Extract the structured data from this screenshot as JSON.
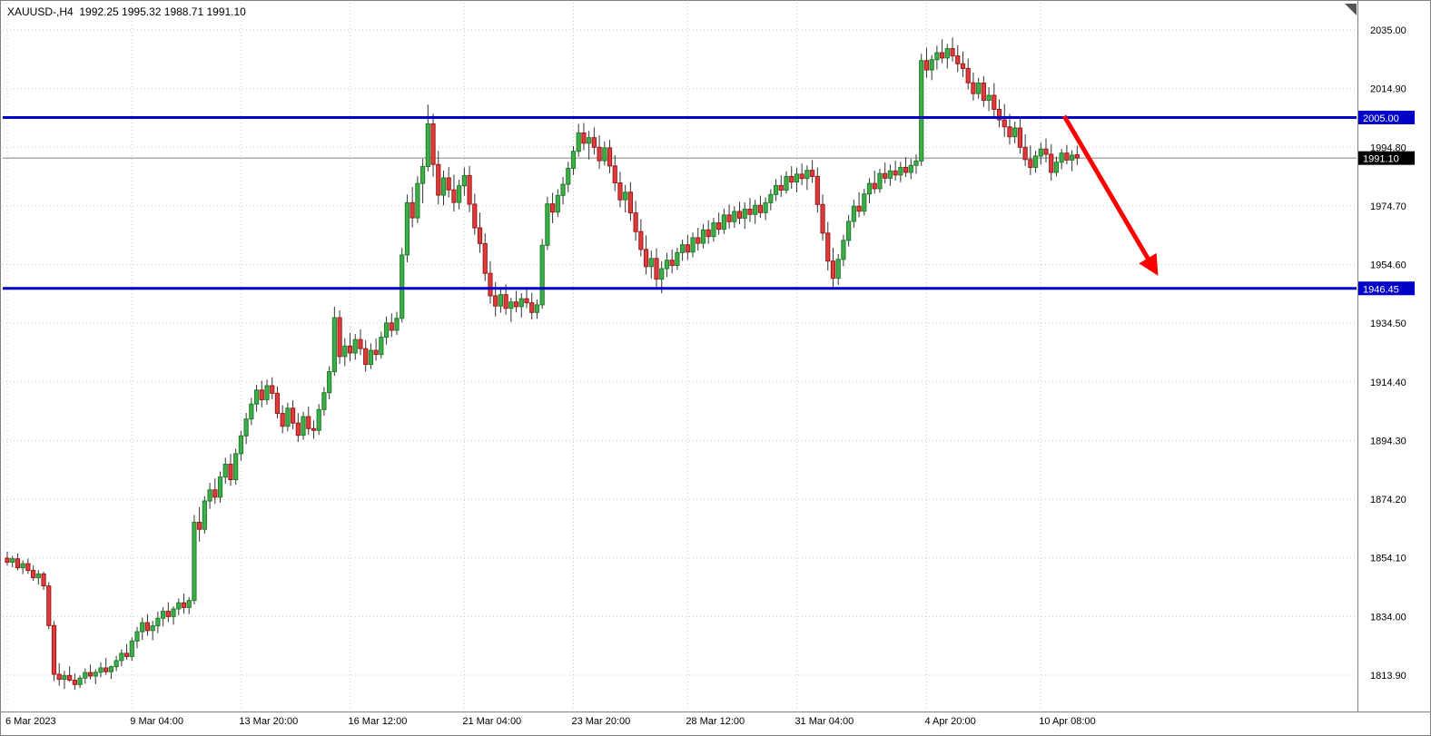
{
  "window": {
    "title": "XAUUSD-,H4  1992.25 1995.32 1988.71 1991.10"
  },
  "colors": {
    "background": "#ffffff",
    "grid": "#c8c8c8",
    "border": "#808080",
    "axis_text": "#000000",
    "bull_body": "#3fae49",
    "bull_border": "#1e7e2a",
    "bear_body": "#e03c3c",
    "bear_border": "#9e1818",
    "wick": "#333333",
    "level_line": "#0000c8",
    "level_label_bg": "#0000c8",
    "price_line": "#808080",
    "price_label_bg": "#000000",
    "label_text": "#ffffff",
    "arrow": "#ff0000",
    "shift_marker": "#555555"
  },
  "chart_data": {
    "type": "candlestick",
    "symbol": "XAUUSD-",
    "timeframe": "H4",
    "ohlc_header": {
      "open": "1992.25",
      "high": "1995.32",
      "low": "1988.71",
      "close": "1991.10"
    },
    "y_axis": {
      "labels": [
        "2035.00",
        "2014.90",
        "1994.80",
        "1974.70",
        "1954.60",
        "1934.50",
        "1914.40",
        "1894.30",
        "1874.20",
        "1854.10",
        "1834.00",
        "1813.90"
      ],
      "max": 2035.0,
      "min": 1813.9,
      "step": 20.1,
      "grid": true
    },
    "x_axis": {
      "labels": [
        {
          "text": "6 Mar 2023",
          "index": 0
        },
        {
          "text": "9 Mar 04:00",
          "index": 24
        },
        {
          "text": "13 Mar 20:00",
          "index": 45
        },
        {
          "text": "16 Mar 12:00",
          "index": 66
        },
        {
          "text": "21 Mar 04:00",
          "index": 88
        },
        {
          "text": "23 Mar 20:00",
          "index": 109
        },
        {
          "text": "28 Mar 12:00",
          "index": 131
        },
        {
          "text": "31 Mar 04:00",
          "index": 152
        },
        {
          "text": "4 Apr 20:00",
          "index": 177
        },
        {
          "text": "10 Apr 08:00",
          "index": 199
        }
      ],
      "grid": true
    },
    "price_lines": [
      {
        "name": "resistance",
        "price": 2005.0,
        "label": "2005.00"
      },
      {
        "name": "support",
        "price": 1946.45,
        "label": "1946.45"
      }
    ],
    "current_price": {
      "value": 1991.1,
      "label": "1991.10"
    },
    "annotations": [
      {
        "type": "trend-arrow",
        "from": {
          "index": 203.5,
          "price": 2005.5
        },
        "to": {
          "index": 221.0,
          "price": 1952.5
        }
      }
    ],
    "candles": [
      [
        1854.0,
        1856.2,
        1851.5,
        1852.6
      ],
      [
        1852.6,
        1854.8,
        1850.9,
        1853.8
      ],
      [
        1853.8,
        1855.6,
        1849.8,
        1850.7
      ],
      [
        1850.7,
        1853.2,
        1848.5,
        1852.1
      ],
      [
        1852.1,
        1853.9,
        1848.6,
        1849.8
      ],
      [
        1849.8,
        1851.5,
        1846.2,
        1847.3
      ],
      [
        1847.3,
        1849.9,
        1845.0,
        1848.6
      ],
      [
        1848.6,
        1849.4,
        1843.1,
        1844.5
      ],
      [
        1844.5,
        1845.8,
        1829.6,
        1830.9
      ],
      [
        1830.9,
        1832.4,
        1811.9,
        1814.2
      ],
      [
        1814.2,
        1818.0,
        1810.3,
        1812.5
      ],
      [
        1812.5,
        1815.4,
        1809.2,
        1813.8
      ],
      [
        1813.8,
        1816.9,
        1811.6,
        1812.2
      ],
      [
        1812.2,
        1814.5,
        1808.9,
        1810.7
      ],
      [
        1810.7,
        1813.8,
        1809.5,
        1812.9
      ],
      [
        1812.9,
        1816.2,
        1811.0,
        1814.8
      ],
      [
        1814.8,
        1817.5,
        1812.4,
        1813.6
      ],
      [
        1813.6,
        1815.9,
        1810.8,
        1814.9
      ],
      [
        1814.9,
        1818.3,
        1813.2,
        1816.4
      ],
      [
        1816.4,
        1819.8,
        1814.0,
        1815.1
      ],
      [
        1815.1,
        1817.2,
        1812.6,
        1816.8
      ],
      [
        1816.8,
        1820.5,
        1815.3,
        1818.9
      ],
      [
        1818.9,
        1822.8,
        1817.0,
        1821.4
      ],
      [
        1821.4,
        1824.6,
        1819.2,
        1820.3
      ],
      [
        1820.3,
        1826.9,
        1818.8,
        1825.6
      ],
      [
        1825.6,
        1830.4,
        1823.1,
        1828.8
      ],
      [
        1828.8,
        1833.6,
        1826.0,
        1831.9
      ],
      [
        1831.9,
        1834.8,
        1827.4,
        1829.2
      ],
      [
        1829.2,
        1832.5,
        1825.9,
        1830.8
      ],
      [
        1830.8,
        1835.7,
        1828.3,
        1833.4
      ],
      [
        1833.4,
        1837.2,
        1830.6,
        1835.8
      ],
      [
        1835.8,
        1838.9,
        1832.1,
        1834.0
      ],
      [
        1834.0,
        1837.5,
        1831.2,
        1836.6
      ],
      [
        1836.6,
        1840.2,
        1834.4,
        1838.7
      ],
      [
        1838.7,
        1841.9,
        1835.0,
        1837.1
      ],
      [
        1837.1,
        1840.6,
        1834.8,
        1839.5
      ],
      [
        1839.5,
        1868.8,
        1838.2,
        1866.3
      ],
      [
        1866.3,
        1871.5,
        1859.7,
        1863.9
      ],
      [
        1863.9,
        1875.2,
        1862.4,
        1873.6
      ],
      [
        1873.6,
        1879.8,
        1870.9,
        1877.4
      ],
      [
        1877.4,
        1881.3,
        1872.6,
        1874.9
      ],
      [
        1874.9,
        1883.7,
        1873.0,
        1881.8
      ],
      [
        1881.8,
        1888.4,
        1879.5,
        1886.2
      ],
      [
        1886.2,
        1889.7,
        1878.8,
        1880.9
      ],
      [
        1880.9,
        1891.5,
        1879.2,
        1889.8
      ],
      [
        1889.8,
        1897.6,
        1887.4,
        1895.9
      ],
      [
        1895.9,
        1903.8,
        1893.1,
        1901.7
      ],
      [
        1901.7,
        1908.9,
        1899.6,
        1906.8
      ],
      [
        1906.8,
        1913.4,
        1904.2,
        1911.6
      ],
      [
        1911.6,
        1914.8,
        1905.7,
        1908.3
      ],
      [
        1908.3,
        1915.2,
        1906.6,
        1913.1
      ],
      [
        1913.1,
        1916.0,
        1908.4,
        1910.5
      ],
      [
        1910.5,
        1912.8,
        1901.9,
        1903.6
      ],
      [
        1903.6,
        1906.4,
        1896.8,
        1899.2
      ],
      [
        1899.2,
        1907.3,
        1897.5,
        1905.4
      ],
      [
        1905.4,
        1908.1,
        1898.2,
        1900.3
      ],
      [
        1900.3,
        1903.7,
        1893.8,
        1896.1
      ],
      [
        1896.1,
        1904.2,
        1894.6,
        1902.5
      ],
      [
        1902.5,
        1905.9,
        1896.3,
        1898.4
      ],
      [
        1898.4,
        1901.2,
        1894.9,
        1897.8
      ],
      [
        1897.8,
        1906.8,
        1896.2,
        1904.9
      ],
      [
        1904.9,
        1912.6,
        1902.8,
        1910.7
      ],
      [
        1910.7,
        1919.8,
        1908.4,
        1917.9
      ],
      [
        1917.9,
        1940.2,
        1916.5,
        1936.4
      ],
      [
        1936.4,
        1938.9,
        1920.6,
        1923.1
      ],
      [
        1923.1,
        1929.4,
        1919.8,
        1926.7
      ],
      [
        1926.7,
        1931.2,
        1921.5,
        1924.3
      ],
      [
        1924.3,
        1930.8,
        1922.0,
        1928.9
      ],
      [
        1928.9,
        1932.4,
        1923.6,
        1925.8
      ],
      [
        1925.8,
        1928.7,
        1917.9,
        1920.4
      ],
      [
        1920.4,
        1927.6,
        1918.8,
        1925.2
      ],
      [
        1925.2,
        1929.3,
        1921.7,
        1923.8
      ],
      [
        1923.8,
        1931.6,
        1922.4,
        1929.7
      ],
      [
        1929.7,
        1936.8,
        1927.2,
        1934.6
      ],
      [
        1934.6,
        1937.9,
        1929.8,
        1932.1
      ],
      [
        1932.1,
        1938.4,
        1930.5,
        1936.2
      ],
      [
        1936.2,
        1960.3,
        1934.8,
        1957.9
      ],
      [
        1957.9,
        1978.6,
        1955.4,
        1975.8
      ],
      [
        1975.8,
        1981.2,
        1967.3,
        1970.6
      ],
      [
        1970.6,
        1984.9,
        1968.8,
        1982.4
      ],
      [
        1982.4,
        1990.8,
        1975.6,
        1988.2
      ],
      [
        1988.2,
        2009.4,
        1986.5,
        2002.8
      ],
      [
        2002.8,
        2006.3,
        1984.7,
        1988.9
      ],
      [
        1988.9,
        1993.6,
        1975.2,
        1978.4
      ],
      [
        1978.4,
        1986.8,
        1974.9,
        1984.3
      ],
      [
        1984.3,
        1988.1,
        1977.6,
        1980.2
      ],
      [
        1980.2,
        1985.4,
        1972.8,
        1975.9
      ],
      [
        1975.9,
        1983.7,
        1973.5,
        1981.6
      ],
      [
        1981.6,
        1987.9,
        1978.2,
        1985.1
      ],
      [
        1985.1,
        1988.4,
        1972.6,
        1975.3
      ],
      [
        1975.3,
        1978.9,
        1964.8,
        1967.2
      ],
      [
        1967.2,
        1972.4,
        1958.6,
        1961.8
      ],
      [
        1961.8,
        1965.3,
        1948.9,
        1951.6
      ],
      [
        1951.6,
        1955.8,
        1941.2,
        1943.9
      ],
      [
        1943.9,
        1948.6,
        1936.8,
        1940.4
      ],
      [
        1940.4,
        1946.2,
        1938.1,
        1944.3
      ],
      [
        1944.3,
        1947.8,
        1937.4,
        1939.6
      ],
      [
        1939.6,
        1943.2,
        1934.9,
        1941.8
      ],
      [
        1941.8,
        1945.6,
        1938.3,
        1940.2
      ],
      [
        1940.2,
        1944.8,
        1936.5,
        1942.9
      ],
      [
        1942.9,
        1946.4,
        1939.7,
        1941.5
      ],
      [
        1941.5,
        1944.9,
        1935.8,
        1938.2
      ],
      [
        1938.2,
        1942.6,
        1936.0,
        1940.8
      ],
      [
        1940.8,
        1963.4,
        1939.5,
        1961.2
      ],
      [
        1961.2,
        1977.8,
        1959.6,
        1975.4
      ],
      [
        1975.4,
        1979.2,
        1968.8,
        1972.6
      ],
      [
        1972.6,
        1980.4,
        1970.9,
        1978.3
      ],
      [
        1978.3,
        1984.6,
        1975.2,
        1982.1
      ],
      [
        1982.1,
        1989.8,
        1979.4,
        1987.6
      ],
      [
        1987.6,
        1995.2,
        1985.3,
        1993.4
      ],
      [
        1993.4,
        2002.8,
        1991.6,
        1999.7
      ],
      [
        1999.7,
        2003.1,
        1993.8,
        1996.2
      ],
      [
        1996.2,
        2000.4,
        1990.6,
        1998.1
      ],
      [
        1998.1,
        2001.6,
        1992.3,
        1994.8
      ],
      [
        1994.8,
        1998.9,
        1987.4,
        1990.2
      ],
      [
        1990.2,
        1996.8,
        1988.6,
        1994.6
      ],
      [
        1994.6,
        1997.3,
        1985.9,
        1988.4
      ],
      [
        1988.4,
        1992.1,
        1979.8,
        1982.6
      ],
      [
        1982.6,
        1986.4,
        1974.2,
        1976.8
      ],
      [
        1976.8,
        1981.9,
        1972.5,
        1979.4
      ],
      [
        1979.4,
        1982.8,
        1969.6,
        1972.3
      ],
      [
        1972.3,
        1976.4,
        1962.8,
        1965.9
      ],
      [
        1965.9,
        1970.2,
        1957.4,
        1959.8
      ],
      [
        1959.8,
        1964.6,
        1951.2,
        1953.9
      ],
      [
        1953.9,
        1959.4,
        1949.8,
        1956.7
      ],
      [
        1956.7,
        1960.2,
        1946.9,
        1949.6
      ],
      [
        1949.6,
        1955.8,
        1944.8,
        1953.2
      ],
      [
        1953.2,
        1958.6,
        1950.4,
        1956.1
      ],
      [
        1956.1,
        1959.8,
        1951.6,
        1954.3
      ],
      [
        1954.3,
        1960.4,
        1952.8,
        1958.7
      ],
      [
        1958.7,
        1963.2,
        1955.9,
        1961.4
      ],
      [
        1961.4,
        1964.8,
        1956.2,
        1958.9
      ],
      [
        1958.9,
        1965.6,
        1957.1,
        1963.8
      ],
      [
        1963.8,
        1967.2,
        1959.4,
        1961.9
      ],
      [
        1961.9,
        1968.4,
        1960.2,
        1966.5
      ],
      [
        1966.5,
        1969.8,
        1961.7,
        1964.2
      ],
      [
        1964.2,
        1970.6,
        1962.5,
        1968.9
      ],
      [
        1968.9,
        1972.4,
        1964.8,
        1966.7
      ],
      [
        1966.7,
        1973.8,
        1965.1,
        1971.6
      ],
      [
        1971.6,
        1975.2,
        1966.9,
        1969.3
      ],
      [
        1969.3,
        1974.6,
        1967.2,
        1972.8
      ],
      [
        1972.8,
        1976.1,
        1968.4,
        1970.5
      ],
      [
        1970.5,
        1975.9,
        1966.8,
        1973.6
      ],
      [
        1973.6,
        1977.4,
        1969.2,
        1971.8
      ],
      [
        1971.8,
        1976.8,
        1968.5,
        1974.9
      ],
      [
        1974.9,
        1978.2,
        1970.6,
        1972.4
      ],
      [
        1972.4,
        1977.6,
        1969.8,
        1975.8
      ],
      [
        1975.8,
        1980.4,
        1973.2,
        1978.6
      ],
      [
        1978.6,
        1983.9,
        1976.4,
        1981.7
      ],
      [
        1981.7,
        1985.2,
        1977.8,
        1980.1
      ],
      [
        1980.1,
        1986.6,
        1978.9,
        1984.8
      ],
      [
        1984.8,
        1988.3,
        1980.6,
        1982.9
      ],
      [
        1982.9,
        1987.8,
        1979.4,
        1985.6
      ],
      [
        1985.6,
        1989.2,
        1981.8,
        1984.1
      ],
      [
        1984.1,
        1988.6,
        1980.2,
        1986.9
      ],
      [
        1986.9,
        1990.4,
        1982.6,
        1984.8
      ],
      [
        1984.8,
        1987.9,
        1972.4,
        1975.2
      ],
      [
        1975.2,
        1978.6,
        1962.8,
        1965.4
      ],
      [
        1965.4,
        1969.2,
        1952.6,
        1955.8
      ],
      [
        1955.8,
        1960.4,
        1946.8,
        1949.9
      ],
      [
        1949.9,
        1958.2,
        1947.6,
        1956.4
      ],
      [
        1956.4,
        1964.8,
        1954.1,
        1962.9
      ],
      [
        1962.9,
        1971.6,
        1960.8,
        1969.4
      ],
      [
        1969.4,
        1976.8,
        1967.2,
        1974.6
      ],
      [
        1974.6,
        1979.4,
        1970.8,
        1972.9
      ],
      [
        1972.9,
        1980.6,
        1971.4,
        1978.8
      ],
      [
        1978.8,
        1984.2,
        1975.6,
        1982.4
      ],
      [
        1982.4,
        1986.8,
        1978.9,
        1980.6
      ],
      [
        1980.6,
        1987.4,
        1979.2,
        1985.8
      ],
      [
        1985.8,
        1989.6,
        1982.4,
        1984.2
      ],
      [
        1984.2,
        1988.9,
        1981.6,
        1986.7
      ],
      [
        1986.7,
        1990.2,
        1983.4,
        1985.3
      ],
      [
        1985.3,
        1989.8,
        1982.8,
        1987.9
      ],
      [
        1987.9,
        1991.4,
        1984.6,
        1986.2
      ],
      [
        1986.2,
        1990.8,
        1983.9,
        1988.6
      ],
      [
        1988.6,
        1992.3,
        1985.7,
        1990.1
      ],
      [
        1990.1,
        2026.8,
        1988.4,
        2024.5
      ],
      [
        2024.5,
        2028.9,
        2018.6,
        2021.3
      ],
      [
        2021.3,
        2026.4,
        2017.8,
        2024.8
      ],
      [
        2024.8,
        2029.6,
        2021.4,
        2027.2
      ],
      [
        2027.2,
        2031.8,
        2023.6,
        2025.4
      ],
      [
        2025.4,
        2030.2,
        2021.8,
        2028.6
      ],
      [
        2028.6,
        2032.4,
        2024.2,
        2026.1
      ],
      [
        2026.1,
        2029.8,
        2020.6,
        2023.4
      ],
      [
        2023.4,
        2027.6,
        2018.9,
        2021.8
      ],
      [
        2021.8,
        2025.2,
        2014.6,
        2016.9
      ],
      [
        2016.9,
        2020.4,
        2010.8,
        2013.2
      ],
      [
        2013.2,
        2018.6,
        2011.4,
        2016.8
      ],
      [
        2016.8,
        2019.2,
        2008.6,
        2010.9
      ],
      [
        2010.9,
        2015.4,
        2007.2,
        2012.6
      ],
      [
        2012.6,
        2016.8,
        2005.4,
        2007.8
      ],
      [
        2007.8,
        2011.2,
        2001.6,
        2004.2
      ],
      [
        2004.2,
        2009.6,
        1998.4,
        2001.8
      ],
      [
        2001.8,
        2006.2,
        1995.8,
        1998.4
      ],
      [
        1998.4,
        2003.6,
        1996.2,
        2001.4
      ],
      [
        2001.4,
        2004.8,
        1992.6,
        1994.8
      ],
      [
        1994.8,
        1999.2,
        1988.4,
        1990.6
      ],
      [
        1990.6,
        1995.4,
        1985.2,
        1987.9
      ],
      [
        1987.9,
        1993.6,
        1986.1,
        1991.8
      ],
      [
        1991.8,
        1996.4,
        1988.8,
        1994.2
      ],
      [
        1994.2,
        1997.8,
        1989.6,
        1992.4
      ],
      [
        1992.4,
        1995.8,
        1983.4,
        1986.2
      ],
      [
        1986.2,
        1991.6,
        1984.8,
        1989.7
      ],
      [
        1989.7,
        1994.2,
        1987.3,
        1992.8
      ],
      [
        1992.8,
        1995.6,
        1988.9,
        1990.4
      ],
      [
        1990.4,
        1993.8,
        1986.6,
        1992.1
      ],
      [
        1992.25,
        1995.32,
        1988.71,
        1991.1
      ]
    ]
  }
}
